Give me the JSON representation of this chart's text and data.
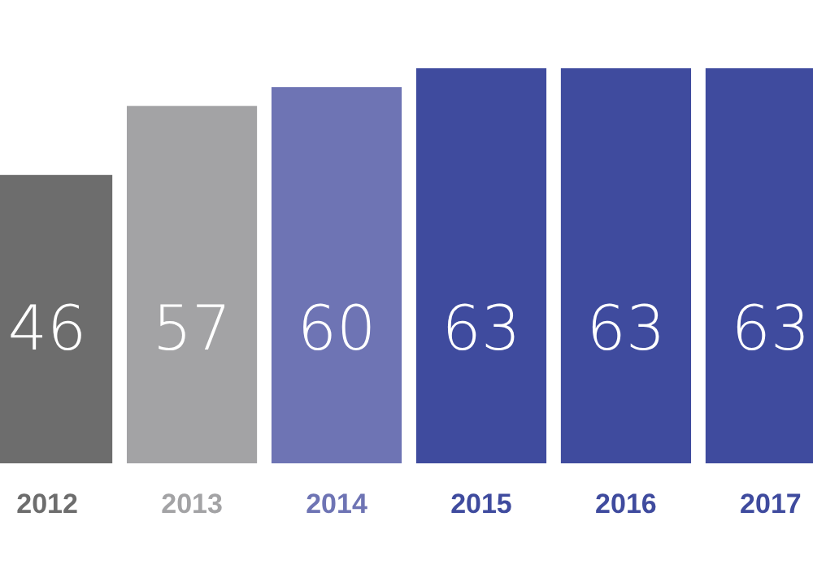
{
  "chart_data": {
    "type": "bar",
    "categories": [
      "2012",
      "2013",
      "2014",
      "2015",
      "2016",
      "2017"
    ],
    "values": [
      46,
      57,
      60,
      63,
      63,
      63
    ],
    "colors": [
      "#6d6d6d",
      "#a3a3a5",
      "#6e74b4",
      "#3f4b9e",
      "#3f4b9e",
      "#3f4b9e"
    ],
    "data_labels": true
  }
}
